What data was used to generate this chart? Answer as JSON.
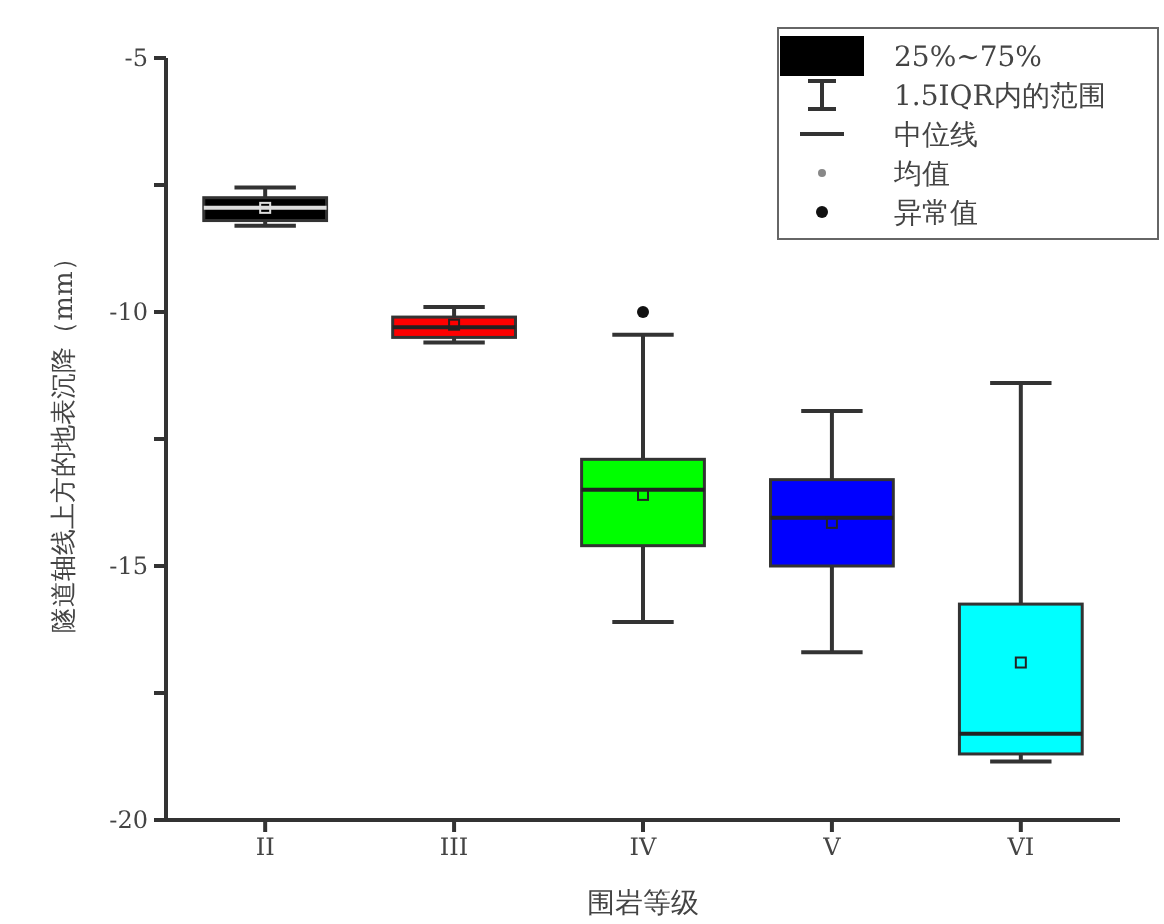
{
  "chart_data": {
    "type": "box",
    "xlabel": "围岩等级",
    "ylabel": "隧道轴线上方的地表沉降（mm）",
    "categories": [
      "II",
      "III",
      "IV",
      "V",
      "VI"
    ],
    "series": [
      {
        "name": "25%~75%",
        "color": "#000000",
        "colors": [
          "#000000",
          "#ff0000",
          "#00ff00",
          "#0000ff",
          "#00ffff"
        ],
        "boxes": [
          {
            "low": -8.3,
            "q1": -8.2,
            "median": -7.95,
            "q3": -7.75,
            "high": -7.55,
            "mean": -7.95
          },
          {
            "low": -10.6,
            "q1": -10.5,
            "median": -10.3,
            "q3": -10.1,
            "high": -9.9,
            "mean": -10.25
          },
          {
            "low": -16.1,
            "q1": -14.6,
            "median": -13.5,
            "q3": -12.9,
            "high": -10.45,
            "mean": -13.6,
            "outliers": [
              -10.0
            ]
          },
          {
            "low": -16.7,
            "q1": -15.0,
            "median": -14.05,
            "q3": -13.3,
            "high": -11.95,
            "mean": -14.15
          },
          {
            "low": -18.85,
            "q1": -18.7,
            "median": -18.3,
            "q3": -15.75,
            "high": -11.4,
            "mean": -16.9
          }
        ]
      }
    ],
    "legend": "top right",
    "ylim": [
      -20,
      -5
    ],
    "yticks": [
      -20,
      {
        "value": -17.5,
        "label": null
      },
      -15,
      {
        "value": -12.5,
        "label": null
      },
      -10,
      {
        "value": -7.5,
        "label": null
      },
      -5
    ],
    "annotations": [
      "1.5IQR内的范围",
      "中位线",
      "均值",
      "异常值"
    ]
  }
}
